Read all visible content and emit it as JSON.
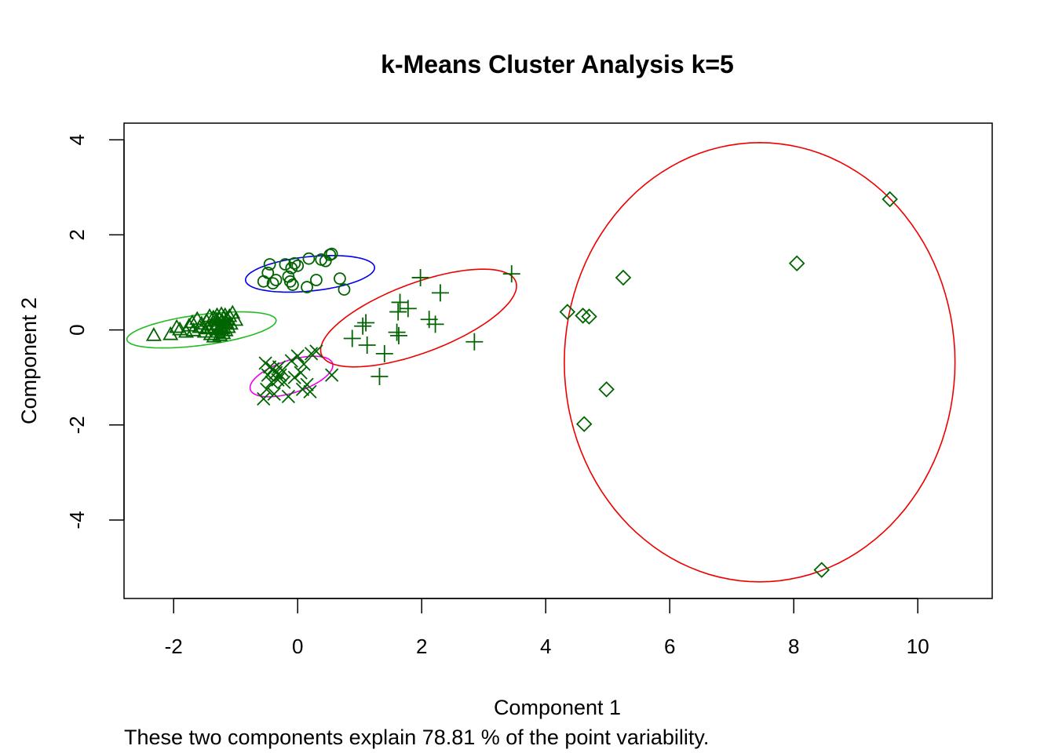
{
  "chart_data": {
    "type": "scatter",
    "title": "k-Means Cluster Analysis k=5",
    "xlabel": "Component 1",
    "ylabel": "Component 2",
    "subtitle": "These two components explain 78.81 % of the point variability.",
    "xlim": [
      -2.8,
      11.2
    ],
    "ylim": [
      -5.65,
      4.35
    ],
    "xticks": [
      -2,
      0,
      2,
      4,
      6,
      8,
      10
    ],
    "yticks": [
      -4,
      -2,
      0,
      2,
      4
    ],
    "grid": false,
    "point_color": "#006400",
    "clusters": [
      {
        "marker": "triangle",
        "ellipse": {
          "cx": -1.55,
          "cy": 0.0,
          "rx": 1.22,
          "ry": 0.32,
          "angle": 10,
          "color": "#22bb22"
        },
        "points": [
          [
            -2.32,
            -0.12
          ],
          [
            -2.05,
            -0.1
          ],
          [
            -1.95,
            0.05
          ],
          [
            -1.9,
            0.0
          ],
          [
            -1.8,
            -0.05
          ],
          [
            -1.75,
            0.08
          ],
          [
            -1.7,
            0.15
          ],
          [
            -1.68,
            -0.02
          ],
          [
            -1.62,
            0.22
          ],
          [
            -1.58,
            0.05
          ],
          [
            -1.55,
            0.12
          ],
          [
            -1.5,
            -0.05
          ],
          [
            -1.47,
            0.18
          ],
          [
            -1.45,
            0.02
          ],
          [
            -1.42,
            0.28
          ],
          [
            -1.4,
            -0.1
          ],
          [
            -1.38,
            0.1
          ],
          [
            -1.36,
            0.25
          ],
          [
            -1.35,
            -0.15
          ],
          [
            -1.33,
            0.05
          ],
          [
            -1.31,
            0.2
          ],
          [
            -1.3,
            0.3
          ],
          [
            -1.29,
            -0.05
          ],
          [
            -1.28,
            0.12
          ],
          [
            -1.27,
            0.0
          ],
          [
            -1.26,
            0.22
          ],
          [
            -1.25,
            -0.12
          ],
          [
            -1.24,
            0.08
          ],
          [
            -1.23,
            0.32
          ],
          [
            -1.22,
            0.18
          ],
          [
            -1.21,
            0.02
          ],
          [
            -1.2,
            -0.08
          ],
          [
            -1.19,
            0.25
          ],
          [
            -1.18,
            0.12
          ],
          [
            -1.17,
            0.3
          ],
          [
            -1.16,
            -0.02
          ],
          [
            -1.15,
            0.15
          ],
          [
            -1.14,
            0.22
          ],
          [
            -1.12,
            0.05
          ],
          [
            -1.1,
            0.28
          ],
          [
            -1.08,
            0.12
          ],
          [
            -1.05,
            0.35
          ],
          [
            -1.0,
            0.2
          ]
        ]
      },
      {
        "marker": "circle",
        "ellipse": {
          "cx": 0.2,
          "cy": 1.18,
          "rx": 1.05,
          "ry": 0.36,
          "angle": 8,
          "color": "#0000ee"
        },
        "points": [
          [
            -0.55,
            1.02
          ],
          [
            -0.48,
            1.2
          ],
          [
            -0.45,
            1.38
          ],
          [
            -0.4,
            0.98
          ],
          [
            -0.35,
            1.05
          ],
          [
            -0.2,
            1.38
          ],
          [
            -0.15,
            1.12
          ],
          [
            -0.12,
            1.02
          ],
          [
            -0.1,
            1.3
          ],
          [
            -0.08,
            0.95
          ],
          [
            -0.05,
            1.4
          ],
          [
            0.0,
            1.35
          ],
          [
            0.15,
            0.9
          ],
          [
            0.18,
            1.5
          ],
          [
            0.3,
            1.05
          ],
          [
            0.38,
            1.48
          ],
          [
            0.45,
            1.45
          ],
          [
            0.52,
            1.58
          ],
          [
            0.55,
            1.6
          ],
          [
            0.68,
            1.08
          ],
          [
            0.75,
            0.85
          ]
        ]
      },
      {
        "marker": "x",
        "ellipse": {
          "cx": -0.1,
          "cy": -0.98,
          "rx": 0.72,
          "ry": 0.33,
          "angle": 25,
          "color": "#ee00ee"
        },
        "points": [
          [
            -0.55,
            -1.45
          ],
          [
            -0.52,
            -0.7
          ],
          [
            -0.5,
            -1.25
          ],
          [
            -0.48,
            -0.95
          ],
          [
            -0.45,
            -0.78
          ],
          [
            -0.42,
            -1.1
          ],
          [
            -0.4,
            -0.82
          ],
          [
            -0.38,
            -1.35
          ],
          [
            -0.35,
            -0.9
          ],
          [
            -0.32,
            -1.05
          ],
          [
            -0.3,
            -0.78
          ],
          [
            -0.28,
            -0.95
          ],
          [
            -0.25,
            -0.85
          ],
          [
            -0.22,
            -1.1
          ],
          [
            -0.15,
            -1.4
          ],
          [
            -0.1,
            -0.65
          ],
          [
            -0.05,
            -1.0
          ],
          [
            0.0,
            -0.55
          ],
          [
            0.05,
            -0.9
          ],
          [
            0.08,
            -1.25
          ],
          [
            0.1,
            -0.72
          ],
          [
            0.15,
            -1.15
          ],
          [
            0.2,
            -1.3
          ],
          [
            0.22,
            -0.5
          ],
          [
            0.3,
            -0.45
          ],
          [
            0.55,
            -0.95
          ]
        ]
      },
      {
        "marker": "plus",
        "ellipse": {
          "cx": 1.95,
          "cy": 0.25,
          "rx": 1.75,
          "ry": 0.7,
          "angle": 28,
          "color": "#ee0000"
        },
        "points": [
          [
            0.88,
            -0.18
          ],
          [
            1.05,
            0.08
          ],
          [
            1.1,
            0.15
          ],
          [
            1.12,
            -0.32
          ],
          [
            1.4,
            -0.5
          ],
          [
            1.32,
            -0.98
          ],
          [
            1.6,
            -0.05
          ],
          [
            1.62,
            0.38
          ],
          [
            1.63,
            -0.12
          ],
          [
            1.65,
            0.58
          ],
          [
            1.78,
            0.45
          ],
          [
            1.98,
            1.1
          ],
          [
            2.12,
            0.22
          ],
          [
            2.22,
            0.12
          ],
          [
            2.3,
            0.78
          ],
          [
            2.85,
            -0.25
          ],
          [
            3.45,
            1.18
          ]
        ]
      },
      {
        "marker": "diamond",
        "ellipse": {
          "cx": 7.45,
          "cy": -0.68,
          "rx": 3.15,
          "ry": 4.62,
          "angle": 0,
          "color": "#ee0000"
        },
        "points": [
          [
            4.35,
            0.38
          ],
          [
            4.6,
            0.3
          ],
          [
            4.7,
            0.28
          ],
          [
            4.62,
            -1.98
          ],
          [
            4.98,
            -1.25
          ],
          [
            5.25,
            1.1
          ],
          [
            8.05,
            1.4
          ],
          [
            9.55,
            2.75
          ],
          [
            8.45,
            -5.05
          ]
        ]
      }
    ]
  }
}
